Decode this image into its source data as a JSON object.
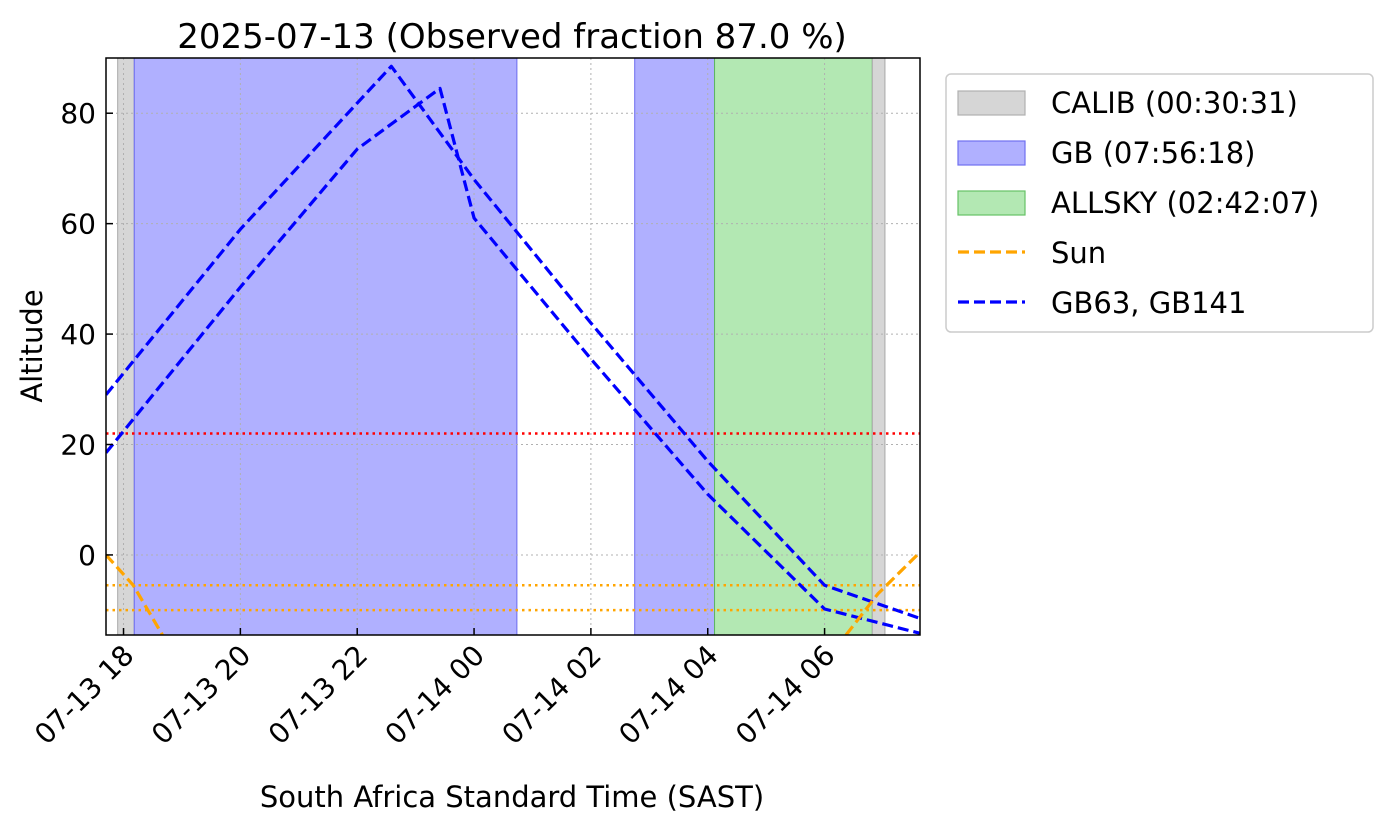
{
  "chart_data": {
    "type": "line",
    "title": "2025-07-13 (Observed fraction 87.0 %)",
    "xlabel": "South Africa Standard Time (SAST)",
    "ylabel": "Altitude",
    "xlim": [
      "2025-07-13 17:42",
      "2025-07-14 07:38"
    ],
    "ylim": [
      -14.5,
      90
    ],
    "yticks": [
      0,
      20,
      40,
      60,
      80
    ],
    "xticks": [
      {
        "t": "2025-07-13 18:00",
        "label": "07-13 18"
      },
      {
        "t": "2025-07-13 20:00",
        "label": "07-13 20"
      },
      {
        "t": "2025-07-13 22:00",
        "label": "07-13 22"
      },
      {
        "t": "2025-07-14 00:00",
        "label": "07-14 00"
      },
      {
        "t": "2025-07-14 02:00",
        "label": "07-14 02"
      },
      {
        "t": "2025-07-14 04:00",
        "label": "07-14 04"
      },
      {
        "t": "2025-07-14 06:00",
        "label": "07-14 06"
      }
    ],
    "grid": true,
    "legend_position": "outside-right",
    "legend": [
      {
        "label": "CALIB (00:30:31)",
        "kind": "patch",
        "color": "#d6d6d6"
      },
      {
        "label": "GB (07:56:18)",
        "kind": "patch",
        "color": "#b0b0ff"
      },
      {
        "label": "ALLSKY (02:42:07)",
        "kind": "patch",
        "color": "#b3e8b3"
      },
      {
        "label": "Sun",
        "kind": "line",
        "color": "#ffa500"
      },
      {
        "label": "GB63, GB141",
        "kind": "line",
        "color": "#0000ff"
      }
    ],
    "spans": [
      {
        "category": "CALIB",
        "start": "2025-07-13 17:54",
        "end": "2025-07-13 18:11",
        "color": "#d6d6d6"
      },
      {
        "category": "GB",
        "start": "2025-07-13 18:11",
        "end": "2025-07-14 00:44",
        "color": "#b0b0ff"
      },
      {
        "category": "GB",
        "start": "2025-07-14 02:45",
        "end": "2025-07-14 04:07",
        "color": "#b0b0ff"
      },
      {
        "category": "ALLSKY",
        "start": "2025-07-14 04:07",
        "end": "2025-07-14 06:49",
        "color": "#b3e8b3"
      },
      {
        "category": "CALIB",
        "start": "2025-07-14 06:49",
        "end": "2025-07-14 07:02",
        "color": "#d6d6d6"
      }
    ],
    "hlines": [
      {
        "y": 22,
        "color": "#ff0000",
        "style": "dotted"
      },
      {
        "y": -5.5,
        "color": "#ffa500",
        "style": "dotted"
      },
      {
        "y": -10,
        "color": "#ffa500",
        "style": "dotted"
      }
    ],
    "series": [
      {
        "color": "#0000ff",
        "dash": "dashed",
        "points": [
          [
            "2025-07-13 17:42",
            29
          ],
          [
            "2025-07-13 20:00",
            59
          ],
          [
            "2025-07-13 22:35",
            88.5
          ],
          [
            "2025-07-14 00:00",
            68
          ],
          [
            "2025-07-14 02:00",
            42
          ],
          [
            "2025-07-14 04:00",
            17
          ],
          [
            "2025-07-14 06:00",
            -5.5
          ],
          [
            "2025-07-14 07:38",
            -11.5
          ]
        ]
      },
      {
        "color": "#0000ff",
        "dash": "dashed",
        "points": [
          [
            "2025-07-13 17:42",
            18.5
          ],
          [
            "2025-07-13 20:00",
            48.5
          ],
          [
            "2025-07-13 22:00",
            73.5
          ],
          [
            "2025-07-13 23:25",
            84.5
          ],
          [
            "2025-07-14 00:00",
            61
          ],
          [
            "2025-07-14 02:00",
            35.5
          ],
          [
            "2025-07-14 04:00",
            11
          ],
          [
            "2025-07-14 06:00",
            -9.8
          ],
          [
            "2025-07-14 07:38",
            -14.2
          ]
        ]
      },
      {
        "color": "#ffa500",
        "dash": "dashed",
        "points": [
          [
            "2025-07-13 17:42",
            0
          ],
          [
            "2025-07-13 18:10",
            -5.5
          ],
          [
            "2025-07-13 18:40",
            -14.5
          ]
        ]
      },
      {
        "color": "#ffa500",
        "dash": "dashed",
        "points": [
          [
            "2025-07-14 06:22",
            -14.5
          ],
          [
            "2025-07-14 06:55",
            -7
          ],
          [
            "2025-07-14 07:38",
            0.5
          ]
        ]
      }
    ]
  }
}
